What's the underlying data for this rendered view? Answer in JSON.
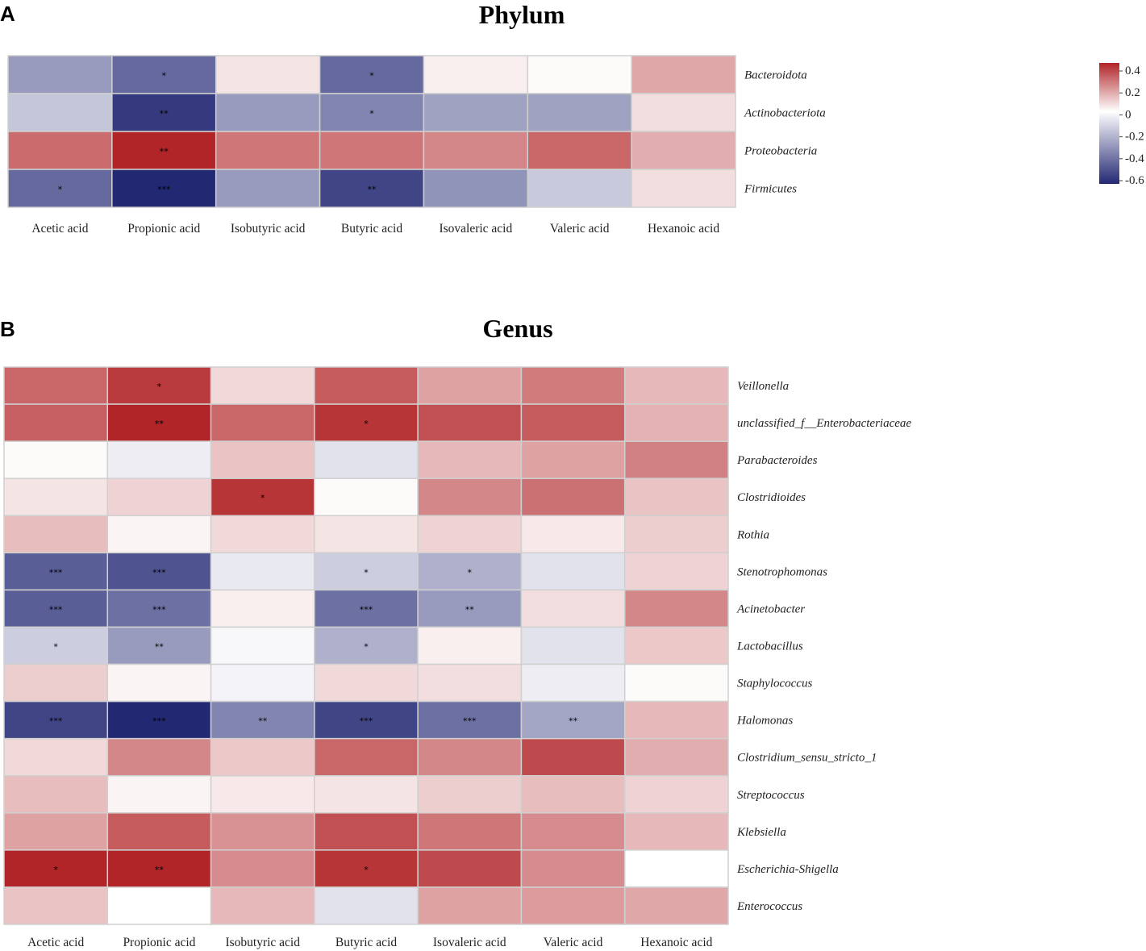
{
  "colors": {
    "low": "#232873",
    "mid": "#ffffff",
    "high": "#b12427",
    "grid": "#d0d0d0"
  },
  "chart_data": [
    {
      "type": "heatmap",
      "panel": "A",
      "title": "Phylum",
      "columns": [
        "Acetic acid",
        "Propionic acid",
        "Isobutyric acid",
        "Butyric acid",
        "Isovaleric acid",
        "Valeric acid",
        "Hexanoic acid"
      ],
      "rows": [
        "Bacteroidota",
        "Actinobacteriota",
        "Proteobacteria",
        "Firmicutes"
      ],
      "values": [
        [
          -0.28,
          -0.42,
          0.05,
          -0.42,
          0.03,
          0.01,
          0.16
        ],
        [
          -0.16,
          -0.55,
          -0.28,
          -0.34,
          -0.26,
          -0.26,
          0.06
        ],
        [
          0.27,
          0.42,
          0.25,
          0.25,
          0.22,
          0.28,
          0.15
        ],
        [
          -0.42,
          -0.62,
          -0.28,
          -0.52,
          -0.3,
          -0.15,
          0.06
        ]
      ],
      "significance": [
        [
          "",
          "*",
          "",
          "*",
          "",
          "",
          ""
        ],
        [
          "",
          "**",
          "",
          "*",
          "",
          "",
          ""
        ],
        [
          "",
          "**",
          "",
          "",
          "",
          "",
          ""
        ],
        [
          "*",
          "***",
          "",
          "**",
          "",
          "",
          ""
        ]
      ],
      "legend": {
        "min": -0.6,
        "max": 0.4,
        "ticks": [
          "0.4",
          "0.2",
          "0",
          "-0.2",
          "-0.4",
          "-0.6"
        ]
      }
    },
    {
      "type": "heatmap",
      "panel": "B",
      "title": "Genus",
      "columns": [
        "Acetic acid",
        "Propionic acid",
        "Isobutyric acid",
        "Butyric acid",
        "Isovaleric acid",
        "Valeric acid",
        "Hexanoic acid"
      ],
      "rows": [
        "Veillonella",
        "unclassified_f__Enterobacteriaceae",
        "Parabacteroides",
        "Clostridioides",
        "Rothia",
        "Stenotrophomonas",
        "Acinetobacter",
        "Lactobacillus",
        "Staphylococcus",
        "Halomonas",
        "Clostridium_sensu_stricto_1",
        "Streptococcus",
        "Klebsiella",
        "Escherichia-Shigella",
        "Enterococcus"
      ],
      "values": [
        [
          0.28,
          0.36,
          0.07,
          0.3,
          0.17,
          0.24,
          0.13
        ],
        [
          0.29,
          0.42,
          0.28,
          0.37,
          0.32,
          0.3,
          0.14
        ],
        [
          0.01,
          -0.05,
          0.11,
          -0.08,
          0.13,
          0.17,
          0.23
        ],
        [
          0.05,
          0.08,
          0.37,
          0.01,
          0.22,
          0.26,
          0.11
        ],
        [
          0.12,
          0.02,
          0.07,
          0.05,
          0.08,
          0.04,
          0.09
        ],
        [
          -0.45,
          -0.48,
          -0.06,
          -0.14,
          -0.22,
          -0.08,
          0.08
        ],
        [
          -0.45,
          -0.4,
          0.03,
          -0.4,
          -0.28,
          0.06,
          0.22
        ],
        [
          -0.14,
          -0.28,
          -0.02,
          -0.22,
          0.03,
          -0.08,
          0.1
        ],
        [
          0.09,
          0.02,
          -0.03,
          0.07,
          0.06,
          -0.05,
          0.01
        ],
        [
          -0.52,
          -0.62,
          -0.34,
          -0.52,
          -0.4,
          -0.25,
          0.13
        ],
        [
          0.07,
          0.22,
          0.1,
          0.28,
          0.22,
          0.33,
          0.15
        ],
        [
          0.12,
          0.02,
          0.04,
          0.05,
          0.09,
          0.12,
          0.08
        ],
        [
          0.17,
          0.3,
          0.2,
          0.32,
          0.25,
          0.21,
          0.13
        ],
        [
          0.4,
          0.42,
          0.21,
          0.37,
          0.33,
          0.21,
          0.0
        ],
        [
          0.11,
          0.0,
          0.13,
          -0.08,
          0.17,
          0.18,
          0.16
        ]
      ],
      "significance": [
        [
          "",
          "*",
          "",
          "",
          "",
          "",
          ""
        ],
        [
          "",
          "**",
          "",
          "*",
          "",
          "",
          ""
        ],
        [
          "",
          "",
          "",
          "",
          "",
          "",
          ""
        ],
        [
          "",
          "",
          "*",
          "",
          "",
          "",
          ""
        ],
        [
          "",
          "",
          "",
          "",
          "",
          "",
          ""
        ],
        [
          "***",
          "***",
          "",
          "*",
          "*",
          "",
          ""
        ],
        [
          "***",
          "***",
          "",
          "***",
          "**",
          "",
          ""
        ],
        [
          "*",
          "**",
          "",
          "*",
          "",
          "",
          ""
        ],
        [
          "",
          "",
          "",
          "",
          "",
          "",
          ""
        ],
        [
          "***",
          "***",
          "**",
          "***",
          "***",
          "**",
          ""
        ],
        [
          "",
          "",
          "",
          "",
          "",
          "",
          ""
        ],
        [
          "",
          "",
          "",
          "",
          "",
          "",
          ""
        ],
        [
          "",
          "",
          "",
          "",
          "",
          "",
          ""
        ],
        [
          "*",
          "**",
          "",
          "*",
          "",
          "",
          ""
        ],
        [
          "",
          "",
          "",
          "",
          "",
          "",
          ""
        ]
      ]
    }
  ]
}
